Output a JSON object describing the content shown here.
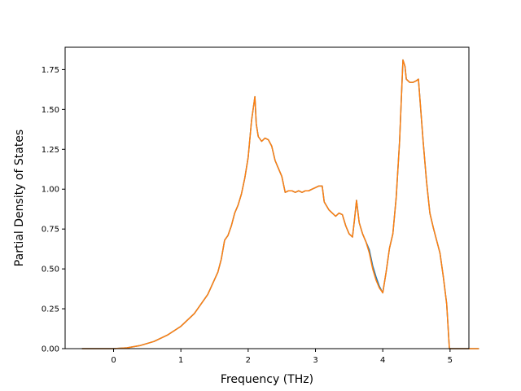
{
  "chart_data": {
    "type": "line",
    "title": "",
    "xlabel": "Frequency (THz)",
    "ylabel": "Partial Density of States",
    "xlim": [
      -0.72,
      5.28
    ],
    "ylim": [
      0.0,
      1.89
    ],
    "xticks": [
      0,
      1,
      2,
      3,
      4,
      5
    ],
    "xtick_labels": [
      "0",
      "1",
      "2",
      "3",
      "4",
      "5"
    ],
    "yticks": [
      0.0,
      0.25,
      0.5,
      0.75,
      1.0,
      1.25,
      1.5,
      1.75
    ],
    "ytick_labels": [
      "0.00",
      "0.25",
      "0.50",
      "0.75",
      "1.00",
      "1.25",
      "1.50",
      "1.75"
    ],
    "grid": false,
    "legend": "none",
    "series": [
      {
        "color": "#1f77b4",
        "points": [
          [
            -0.47,
            0.0
          ],
          [
            0.0,
            0.0
          ],
          [
            0.2,
            0.005
          ],
          [
            0.4,
            0.02
          ],
          [
            0.6,
            0.045
          ],
          [
            0.8,
            0.085
          ],
          [
            1.0,
            0.14
          ],
          [
            1.2,
            0.22
          ],
          [
            1.4,
            0.34
          ],
          [
            1.55,
            0.48
          ],
          [
            1.6,
            0.56
          ],
          [
            1.65,
            0.68
          ],
          [
            1.7,
            0.71
          ],
          [
            1.75,
            0.77
          ],
          [
            1.8,
            0.85
          ],
          [
            1.85,
            0.9
          ],
          [
            1.9,
            0.97
          ],
          [
            1.95,
            1.07
          ],
          [
            2.0,
            1.2
          ],
          [
            2.05,
            1.43
          ],
          [
            2.1,
            1.58
          ],
          [
            2.12,
            1.41
          ],
          [
            2.15,
            1.33
          ],
          [
            2.2,
            1.3
          ],
          [
            2.25,
            1.32
          ],
          [
            2.3,
            1.31
          ],
          [
            2.35,
            1.27
          ],
          [
            2.4,
            1.18
          ],
          [
            2.45,
            1.13
          ],
          [
            2.5,
            1.08
          ],
          [
            2.55,
            0.98
          ],
          [
            2.6,
            0.99
          ],
          [
            2.65,
            0.99
          ],
          [
            2.7,
            0.98
          ],
          [
            2.75,
            0.99
          ],
          [
            2.8,
            0.98
          ],
          [
            2.85,
            0.99
          ],
          [
            2.9,
            0.99
          ],
          [
            2.95,
            1.0
          ],
          [
            3.0,
            1.01
          ],
          [
            3.05,
            1.02
          ],
          [
            3.1,
            1.02
          ],
          [
            3.13,
            0.92
          ],
          [
            3.2,
            0.87
          ],
          [
            3.25,
            0.85
          ],
          [
            3.3,
            0.83
          ],
          [
            3.35,
            0.85
          ],
          [
            3.4,
            0.84
          ],
          [
            3.45,
            0.77
          ],
          [
            3.5,
            0.72
          ],
          [
            3.55,
            0.7
          ],
          [
            3.58,
            0.81
          ],
          [
            3.61,
            0.93
          ],
          [
            3.65,
            0.79
          ],
          [
            3.7,
            0.72
          ],
          [
            3.75,
            0.67
          ],
          [
            3.8,
            0.62
          ],
          [
            3.85,
            0.52
          ],
          [
            3.9,
            0.45
          ],
          [
            3.95,
            0.39
          ],
          [
            4.0,
            0.35
          ],
          [
            4.05,
            0.48
          ],
          [
            4.1,
            0.63
          ],
          [
            4.15,
            0.72
          ],
          [
            4.2,
            0.95
          ],
          [
            4.25,
            1.3
          ],
          [
            4.3,
            1.81
          ],
          [
            4.33,
            1.77
          ],
          [
            4.35,
            1.69
          ],
          [
            4.4,
            1.67
          ],
          [
            4.45,
            1.67
          ],
          [
            4.5,
            1.68
          ],
          [
            4.53,
            1.69
          ],
          [
            4.6,
            1.3
          ],
          [
            4.65,
            1.05
          ],
          [
            4.7,
            0.85
          ],
          [
            4.75,
            0.76
          ],
          [
            4.8,
            0.68
          ],
          [
            4.85,
            0.6
          ],
          [
            4.9,
            0.45
          ],
          [
            4.95,
            0.28
          ],
          [
            4.99,
            0.0
          ],
          [
            5.0,
            0.0
          ],
          [
            5.43,
            0.0
          ]
        ]
      },
      {
        "color": "#ff7f0e",
        "points": [
          [
            -0.47,
            0.0
          ],
          [
            0.0,
            0.0
          ],
          [
            0.2,
            0.005
          ],
          [
            0.4,
            0.02
          ],
          [
            0.6,
            0.045
          ],
          [
            0.8,
            0.085
          ],
          [
            1.0,
            0.14
          ],
          [
            1.2,
            0.22
          ],
          [
            1.4,
            0.34
          ],
          [
            1.55,
            0.48
          ],
          [
            1.6,
            0.56
          ],
          [
            1.65,
            0.68
          ],
          [
            1.7,
            0.71
          ],
          [
            1.75,
            0.77
          ],
          [
            1.8,
            0.85
          ],
          [
            1.85,
            0.9
          ],
          [
            1.9,
            0.97
          ],
          [
            1.95,
            1.07
          ],
          [
            2.0,
            1.2
          ],
          [
            2.05,
            1.43
          ],
          [
            2.1,
            1.58
          ],
          [
            2.12,
            1.41
          ],
          [
            2.15,
            1.33
          ],
          [
            2.2,
            1.3
          ],
          [
            2.25,
            1.32
          ],
          [
            2.3,
            1.31
          ],
          [
            2.35,
            1.27
          ],
          [
            2.4,
            1.18
          ],
          [
            2.45,
            1.13
          ],
          [
            2.5,
            1.08
          ],
          [
            2.55,
            0.98
          ],
          [
            2.6,
            0.99
          ],
          [
            2.65,
            0.99
          ],
          [
            2.7,
            0.98
          ],
          [
            2.75,
            0.99
          ],
          [
            2.8,
            0.98
          ],
          [
            2.85,
            0.99
          ],
          [
            2.9,
            0.99
          ],
          [
            2.95,
            1.0
          ],
          [
            3.0,
            1.01
          ],
          [
            3.05,
            1.02
          ],
          [
            3.1,
            1.02
          ],
          [
            3.13,
            0.92
          ],
          [
            3.2,
            0.87
          ],
          [
            3.25,
            0.85
          ],
          [
            3.3,
            0.83
          ],
          [
            3.35,
            0.85
          ],
          [
            3.4,
            0.84
          ],
          [
            3.45,
            0.77
          ],
          [
            3.5,
            0.72
          ],
          [
            3.55,
            0.7
          ],
          [
            3.58,
            0.81
          ],
          [
            3.61,
            0.93
          ],
          [
            3.65,
            0.79
          ],
          [
            3.7,
            0.72
          ],
          [
            3.75,
            0.67
          ],
          [
            3.8,
            0.6
          ],
          [
            3.85,
            0.5
          ],
          [
            3.9,
            0.43
          ],
          [
            3.95,
            0.38
          ],
          [
            4.0,
            0.35
          ],
          [
            4.05,
            0.48
          ],
          [
            4.1,
            0.63
          ],
          [
            4.15,
            0.72
          ],
          [
            4.2,
            0.95
          ],
          [
            4.25,
            1.3
          ],
          [
            4.3,
            1.81
          ],
          [
            4.33,
            1.77
          ],
          [
            4.35,
            1.69
          ],
          [
            4.4,
            1.67
          ],
          [
            4.45,
            1.67
          ],
          [
            4.5,
            1.68
          ],
          [
            4.53,
            1.69
          ],
          [
            4.6,
            1.3
          ],
          [
            4.65,
            1.05
          ],
          [
            4.7,
            0.85
          ],
          [
            4.75,
            0.76
          ],
          [
            4.8,
            0.68
          ],
          [
            4.85,
            0.6
          ],
          [
            4.9,
            0.45
          ],
          [
            4.95,
            0.28
          ],
          [
            4.99,
            0.0
          ],
          [
            5.0,
            0.0
          ],
          [
            5.43,
            0.0
          ]
        ]
      }
    ]
  }
}
